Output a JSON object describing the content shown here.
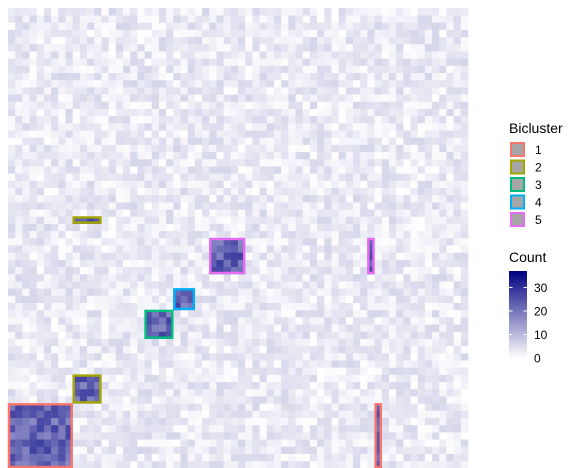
{
  "chart_data": {
    "type": "heatmap",
    "title": "",
    "xlabel": "",
    "ylabel": "",
    "grid": false,
    "legend_position": "right",
    "colorscale": {
      "title": "Count",
      "min": 0,
      "max": 37,
      "ticks": [
        0,
        10,
        20,
        30
      ],
      "low_color": "#ffffff",
      "high_color": "#000080"
    },
    "background": {
      "cells": "64x64",
      "count_range": [
        0,
        6
      ]
    },
    "bicluster_legend": {
      "title": "Bicluster",
      "fill": "#a6a6a6",
      "items": [
        {
          "label": "1",
          "color": "#f8766d"
        },
        {
          "label": "2",
          "color": "#a3a500"
        },
        {
          "label": "3",
          "color": "#00bf7d"
        },
        {
          "label": "4",
          "color": "#00b0f6"
        },
        {
          "label": "5",
          "color": "#e76bf3"
        }
      ]
    },
    "biclusters": [
      {
        "id": "1",
        "color": "#f8766d",
        "count_range": [
          17,
          28
        ],
        "rects": [
          {
            "rows": [
              0,
              8
            ],
            "cols": [
              0,
              8
            ]
          },
          {
            "rows": [
              0,
              8
            ],
            "cols": [
              51,
              51
            ]
          }
        ]
      },
      {
        "id": "2",
        "color": "#a3a500",
        "count_range": [
          17,
          28
        ],
        "rects": [
          {
            "rows": [
              9,
              12
            ],
            "cols": [
              9,
              12
            ]
          },
          {
            "rows": [
              34,
              34
            ],
            "cols": [
              9,
              12
            ]
          }
        ]
      },
      {
        "id": "3",
        "color": "#00bf7d",
        "count_range": [
          17,
          28
        ],
        "rects": [
          {
            "rows": [
              18,
              21
            ],
            "cols": [
              19,
              22
            ]
          }
        ]
      },
      {
        "id": "4",
        "color": "#00b0f6",
        "count_range": [
          17,
          28
        ],
        "rects": [
          {
            "rows": [
              22,
              24
            ],
            "cols": [
              23,
              25
            ]
          }
        ]
      },
      {
        "id": "5",
        "color": "#e76bf3",
        "count_range": [
          17,
          28
        ],
        "rects": [
          {
            "rows": [
              27,
              31
            ],
            "cols": [
              28,
              32
            ]
          },
          {
            "rows": [
              27,
              31
            ],
            "cols": [
              50,
              50
            ]
          }
        ]
      }
    ]
  }
}
